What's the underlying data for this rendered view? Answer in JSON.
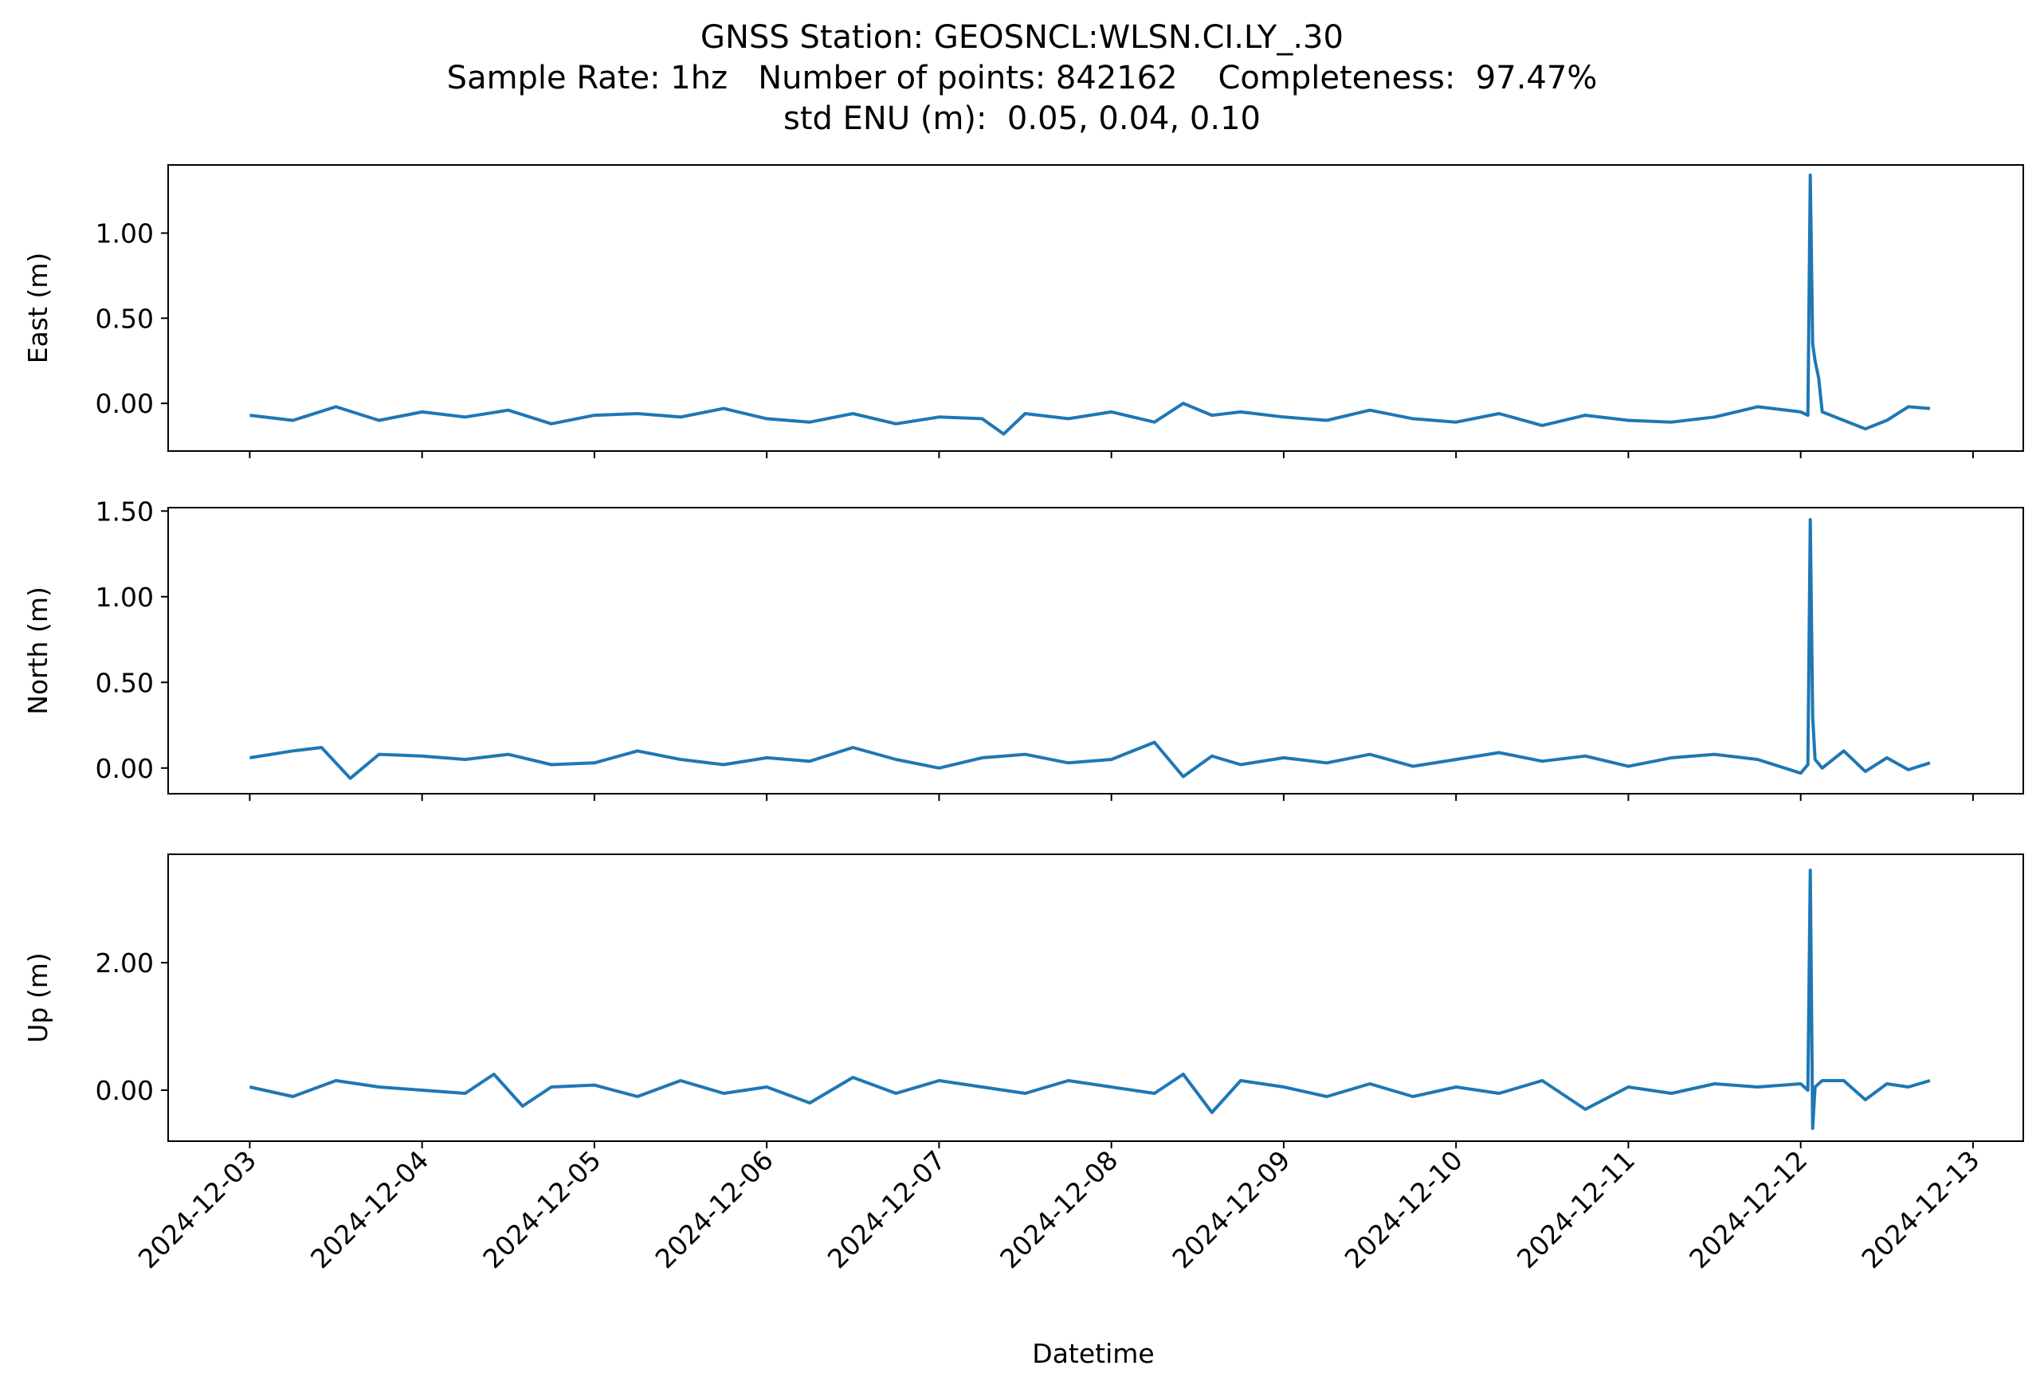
{
  "chart_data": {
    "type": "line",
    "title_lines": [
      "GNSS Station: GEOSNCL:WLSN.CI.LY_.30",
      "Sample Rate: 1hz   Number of points: 842162    Completeness:  97.47%",
      "std ENU (m):  0.05, 0.04, 0.10"
    ],
    "xlabel": "Datetime",
    "x_ticks": [
      "2024-12-03",
      "2024-12-04",
      "2024-12-05",
      "2024-12-06",
      "2024-12-07",
      "2024-12-08",
      "2024-12-09",
      "2024-12-10",
      "2024-12-11",
      "2024-12-12",
      "2024-12-13"
    ],
    "xlim": [
      "2024-12-02T12:38",
      "2024-12-13T07:00"
    ],
    "line_color": "#1f77b4",
    "grid": false,
    "panels": [
      {
        "ylabel": "East (m)",
        "ylim": [
          -0.28,
          1.4
        ],
        "yticks": [
          1.0,
          0.5,
          0.0
        ],
        "ytick_labels": [
          "1.00",
          "0.50",
          "0.00"
        ],
        "series": [
          {
            "x": [
              "2024-12-03T00:00",
              "2024-12-03T06:00",
              "2024-12-03T12:00",
              "2024-12-03T18:00",
              "2024-12-04T00:00",
              "2024-12-04T06:00",
              "2024-12-04T12:00",
              "2024-12-04T18:00",
              "2024-12-05T00:00",
              "2024-12-05T06:00",
              "2024-12-05T12:00",
              "2024-12-05T18:00",
              "2024-12-06T00:00",
              "2024-12-06T06:00",
              "2024-12-06T12:00",
              "2024-12-06T18:00",
              "2024-12-07T00:00",
              "2024-12-07T06:00",
              "2024-12-07T09:00",
              "2024-12-07T12:00",
              "2024-12-07T18:00",
              "2024-12-08T00:00",
              "2024-12-08T06:00",
              "2024-12-08T10:00",
              "2024-12-08T14:00",
              "2024-12-08T18:00",
              "2024-12-09T00:00",
              "2024-12-09T06:00",
              "2024-12-09T12:00",
              "2024-12-09T18:00",
              "2024-12-10T00:00",
              "2024-12-10T06:00",
              "2024-12-10T12:00",
              "2024-12-10T18:00",
              "2024-12-11T00:00",
              "2024-12-11T06:00",
              "2024-12-11T12:00",
              "2024-12-11T18:00",
              "2024-12-12T00:00",
              "2024-12-12T01:00",
              "2024-12-12T01:20",
              "2024-12-12T01:40",
              "2024-12-12T02:00",
              "2024-12-12T02:30",
              "2024-12-12T03:00",
              "2024-12-12T06:00",
              "2024-12-12T09:00",
              "2024-12-12T12:00",
              "2024-12-12T15:00",
              "2024-12-12T18:00"
            ],
            "y": [
              -0.07,
              -0.1,
              -0.02,
              -0.1,
              -0.05,
              -0.08,
              -0.04,
              -0.12,
              -0.07,
              -0.06,
              -0.08,
              -0.03,
              -0.09,
              -0.11,
              -0.06,
              -0.12,
              -0.08,
              -0.09,
              -0.18,
              -0.06,
              -0.09,
              -0.05,
              -0.11,
              0.0,
              -0.07,
              -0.05,
              -0.08,
              -0.1,
              -0.04,
              -0.09,
              -0.11,
              -0.06,
              -0.13,
              -0.07,
              -0.1,
              -0.11,
              -0.08,
              -0.02,
              -0.05,
              -0.07,
              1.34,
              0.35,
              0.25,
              0.15,
              -0.05,
              -0.1,
              -0.15,
              -0.1,
              -0.02,
              -0.03
            ]
          }
        ]
      },
      {
        "ylabel": "North (m)",
        "ylim": [
          -0.15,
          1.52
        ],
        "yticks": [
          1.5,
          1.0,
          0.5,
          0.0
        ],
        "ytick_labels": [
          "1.50",
          "1.00",
          "0.50",
          "0.00"
        ],
        "series": [
          {
            "x": [
              "2024-12-03T00:00",
              "2024-12-03T06:00",
              "2024-12-03T10:00",
              "2024-12-03T14:00",
              "2024-12-03T18:00",
              "2024-12-04T00:00",
              "2024-12-04T06:00",
              "2024-12-04T12:00",
              "2024-12-04T18:00",
              "2024-12-05T00:00",
              "2024-12-05T06:00",
              "2024-12-05T12:00",
              "2024-12-05T18:00",
              "2024-12-06T00:00",
              "2024-12-06T06:00",
              "2024-12-06T12:00",
              "2024-12-06T18:00",
              "2024-12-07T00:00",
              "2024-12-07T06:00",
              "2024-12-07T12:00",
              "2024-12-07T18:00",
              "2024-12-08T00:00",
              "2024-12-08T06:00",
              "2024-12-08T10:00",
              "2024-12-08T14:00",
              "2024-12-08T18:00",
              "2024-12-09T00:00",
              "2024-12-09T06:00",
              "2024-12-09T12:00",
              "2024-12-09T18:00",
              "2024-12-10T00:00",
              "2024-12-10T06:00",
              "2024-12-10T12:00",
              "2024-12-10T18:00",
              "2024-12-11T00:00",
              "2024-12-11T06:00",
              "2024-12-11T12:00",
              "2024-12-11T18:00",
              "2024-12-12T00:00",
              "2024-12-12T01:00",
              "2024-12-12T01:20",
              "2024-12-12T01:40",
              "2024-12-12T02:00",
              "2024-12-12T03:00",
              "2024-12-12T06:00",
              "2024-12-12T09:00",
              "2024-12-12T12:00",
              "2024-12-12T15:00",
              "2024-12-12T18:00"
            ],
            "y": [
              0.06,
              0.1,
              0.12,
              -0.06,
              0.08,
              0.07,
              0.05,
              0.08,
              0.02,
              0.03,
              0.1,
              0.05,
              0.02,
              0.06,
              0.04,
              0.12,
              0.05,
              0.0,
              0.06,
              0.08,
              0.03,
              0.05,
              0.15,
              -0.05,
              0.07,
              0.02,
              0.06,
              0.03,
              0.08,
              0.01,
              0.05,
              0.09,
              0.04,
              0.07,
              0.01,
              0.06,
              0.08,
              0.05,
              -0.03,
              0.02,
              1.45,
              0.3,
              0.05,
              0.0,
              0.1,
              -0.02,
              0.06,
              -0.01,
              0.03
            ]
          }
        ]
      },
      {
        "ylabel": "Up (m)",
        "ylim": [
          -0.8,
          3.7
        ],
        "yticks": [
          2.0,
          0.0
        ],
        "ytick_labels": [
          "2.00",
          "0.00"
        ],
        "series": [
          {
            "x": [
              "2024-12-03T00:00",
              "2024-12-03T06:00",
              "2024-12-03T12:00",
              "2024-12-03T18:00",
              "2024-12-04T00:00",
              "2024-12-04T06:00",
              "2024-12-04T10:00",
              "2024-12-04T14:00",
              "2024-12-04T18:00",
              "2024-12-05T00:00",
              "2024-12-05T06:00",
              "2024-12-05T12:00",
              "2024-12-05T18:00",
              "2024-12-06T00:00",
              "2024-12-06T06:00",
              "2024-12-06T12:00",
              "2024-12-06T18:00",
              "2024-12-07T00:00",
              "2024-12-07T06:00",
              "2024-12-07T12:00",
              "2024-12-07T18:00",
              "2024-12-08T00:00",
              "2024-12-08T06:00",
              "2024-12-08T10:00",
              "2024-12-08T14:00",
              "2024-12-08T18:00",
              "2024-12-09T00:00",
              "2024-12-09T06:00",
              "2024-12-09T12:00",
              "2024-12-09T18:00",
              "2024-12-10T00:00",
              "2024-12-10T06:00",
              "2024-12-10T12:00",
              "2024-12-10T18:00",
              "2024-12-11T00:00",
              "2024-12-11T06:00",
              "2024-12-11T12:00",
              "2024-12-11T18:00",
              "2024-12-12T00:00",
              "2024-12-12T01:00",
              "2024-12-12T01:20",
              "2024-12-12T01:40",
              "2024-12-12T02:00",
              "2024-12-12T03:00",
              "2024-12-12T06:00",
              "2024-12-12T09:00",
              "2024-12-12T12:00",
              "2024-12-12T15:00",
              "2024-12-12T18:00"
            ],
            "y": [
              0.05,
              -0.1,
              0.15,
              0.05,
              0.0,
              -0.05,
              0.25,
              -0.25,
              0.05,
              0.08,
              -0.1,
              0.15,
              -0.05,
              0.05,
              -0.2,
              0.2,
              -0.05,
              0.15,
              0.05,
              -0.05,
              0.15,
              0.05,
              -0.05,
              0.25,
              -0.35,
              0.15,
              0.05,
              -0.1,
              0.1,
              -0.1,
              0.05,
              -0.05,
              0.15,
              -0.3,
              0.05,
              -0.05,
              0.1,
              0.05,
              0.1,
              0.0,
              3.45,
              -0.6,
              0.05,
              0.15,
              0.15,
              -0.15,
              0.1,
              0.05,
              0.15
            ]
          }
        ]
      }
    ]
  }
}
